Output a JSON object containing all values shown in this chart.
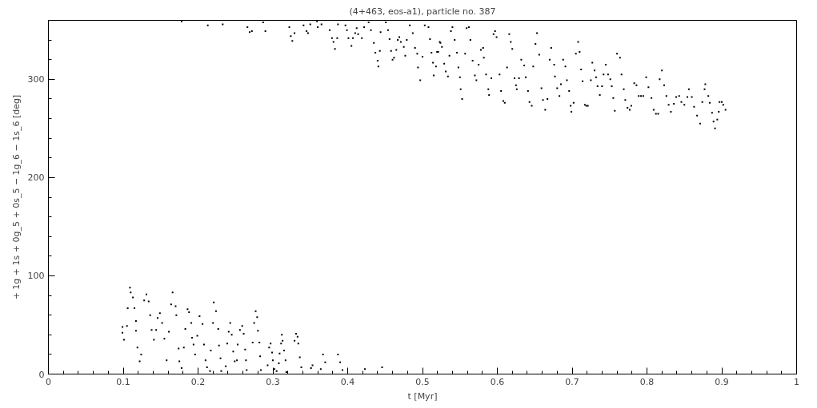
{
  "chart_data": {
    "type": "scatter",
    "title": "(4+463, eos-a1), particle no. 387",
    "xlabel": "t [Myr]",
    "ylabel": "+ 1g + 1s + 0g_5 + 0s_5 − 1g_6 − 1s_6 [deg]",
    "xlim": [
      0,
      1
    ],
    "ylim": [
      0,
      360
    ],
    "xticks": [
      0,
      {
        "value": 0.02,
        "label": null
      },
      {
        "value": 0.04,
        "label": null
      },
      {
        "value": 0.06,
        "label": null
      },
      {
        "value": 0.08,
        "label": null
      },
      0.1,
      {
        "value": 0.12,
        "label": null
      },
      {
        "value": 0.14,
        "label": null
      },
      {
        "value": 0.16,
        "label": null
      },
      {
        "value": 0.18,
        "label": null
      },
      0.2,
      {
        "value": 0.22,
        "label": null
      },
      {
        "value": 0.24,
        "label": null
      },
      {
        "value": 0.26,
        "label": null
      },
      {
        "value": 0.28,
        "label": null
      },
      0.3,
      {
        "value": 0.32,
        "label": null
      },
      {
        "value": 0.34,
        "label": null
      },
      {
        "value": 0.36,
        "label": null
      },
      {
        "value": 0.38,
        "label": null
      },
      0.4,
      {
        "value": 0.42,
        "label": null
      },
      {
        "value": 0.44,
        "label": null
      },
      {
        "value": 0.46,
        "label": null
      },
      {
        "value": 0.48,
        "label": null
      },
      0.5,
      {
        "value": 0.52,
        "label": null
      },
      {
        "value": 0.54,
        "label": null
      },
      {
        "value": 0.56,
        "label": null
      },
      {
        "value": 0.58,
        "label": null
      },
      0.6,
      {
        "value": 0.62,
        "label": null
      },
      {
        "value": 0.64,
        "label": null
      },
      {
        "value": 0.66,
        "label": null
      },
      {
        "value": 0.68,
        "label": null
      },
      0.7,
      {
        "value": 0.72,
        "label": null
      },
      {
        "value": 0.74,
        "label": null
      },
      {
        "value": 0.76,
        "label": null
      },
      {
        "value": 0.78,
        "label": null
      },
      0.8,
      {
        "value": 0.82,
        "label": null
      },
      {
        "value": 0.84,
        "label": null
      },
      {
        "value": 0.86,
        "label": null
      },
      {
        "value": 0.88,
        "label": null
      },
      0.9,
      {
        "value": 0.92,
        "label": null
      },
      {
        "value": 0.94,
        "label": null
      },
      {
        "value": 0.96,
        "label": null
      },
      {
        "value": 0.98,
        "label": null
      },
      1
    ],
    "yticks": [
      0,
      {
        "value": 20,
        "label": null
      },
      {
        "value": 40,
        "label": null
      },
      {
        "value": 60,
        "label": null
      },
      {
        "value": 80,
        "label": null
      },
      100,
      {
        "value": 120,
        "label": null
      },
      {
        "value": 140,
        "label": null
      },
      {
        "value": 160,
        "label": null
      },
      {
        "value": 180,
        "label": null
      },
      200,
      {
        "value": 220,
        "label": null
      },
      {
        "value": 240,
        "label": null
      },
      {
        "value": 260,
        "label": null
      },
      {
        "value": 280,
        "label": null
      },
      300,
      {
        "value": 320,
        "label": null
      },
      {
        "value": 340,
        "label": null
      }
    ],
    "grid": false,
    "marker": "square",
    "series": [
      {
        "color": "#000000",
        "x": [
          0.099,
          0.099,
          0.101,
          0.105,
          0.106,
          0.109,
          0.11,
          0.113,
          0.115,
          0.117,
          0.117,
          0.119,
          0.122,
          0.124,
          0.128,
          0.131,
          0.134,
          0.136,
          0.138,
          0.141,
          0.144,
          0.146,
          0.149,
          0.152,
          0.155,
          0.158,
          0.161,
          0.164,
          0.166,
          0.17,
          0.171,
          0.174,
          0.175,
          0.178,
          0.181,
          0.183,
          0.186,
          0.188,
          0.191,
          0.192,
          0.194,
          0.196,
          0.199,
          0.202,
          0.206,
          0.208,
          0.21,
          0.212,
          0.216,
          0.217,
          0.22,
          0.221,
          0.224,
          0.227,
          0.228,
          0.23,
          0.231,
          0.237,
          0.239,
          0.241,
          0.243,
          0.245,
          0.247,
          0.249,
          0.252,
          0.253,
          0.256,
          0.259,
          0.261,
          0.263,
          0.264,
          0.265,
          0.273,
          0.275,
          0.277,
          0.279,
          0.28,
          0.282,
          0.283,
          0.284,
          0.293,
          0.295,
          0.297,
          0.299,
          0.3,
          0.302,
          0.305,
          0.308,
          0.309,
          0.311,
          0.312,
          0.313,
          0.315,
          0.317,
          0.318,
          0.329,
          0.331,
          0.333,
          0.334,
          0.336,
          0.338,
          0.351,
          0.353,
          0.364,
          0.367,
          0.37,
          0.387,
          0.39,
          0.393,
          0.423,
          0.446,
          0.178,
          0.213,
          0.233,
          0.266,
          0.269,
          0.272,
          0.287,
          0.29,
          0.322,
          0.324,
          0.326,
          0.329,
          0.341,
          0.345,
          0.347,
          0.35,
          0.359,
          0.36,
          0.365,
          0.376,
          0.379,
          0.381,
          0.383,
          0.386,
          0.387,
          0.397,
          0.399,
          0.401,
          0.405,
          0.407,
          0.41,
          0.412,
          0.414,
          0.419,
          0.422,
          0.428,
          0.431,
          0.435,
          0.437,
          0.44,
          0.441,
          0.443,
          0.444,
          0.451,
          0.454,
          0.456,
          0.458,
          0.46,
          0.462,
          0.465,
          0.467,
          0.469,
          0.471,
          0.475,
          0.477,
          0.479,
          0.483,
          0.487,
          0.49,
          0.493,
          0.494,
          0.497,
          0.5,
          0.503,
          0.508,
          0.51,
          0.512,
          0.514,
          0.515,
          0.518,
          0.521,
          0.524,
          0.5195,
          0.523,
          0.526,
          0.529,
          0.531,
          0.534,
          0.536,
          0.538,
          0.54,
          0.543,
          0.546,
          0.548,
          0.55,
          0.551,
          0.553,
          0.557,
          0.559,
          0.562,
          0.564,
          0.567,
          0.57,
          0.572,
          0.575,
          0.578,
          0.581,
          0.582,
          0.585,
          0.588,
          0.589,
          0.592,
          0.595,
          0.597,
          0.599,
          0.603,
          0.605,
          0.608,
          0.61,
          0.613,
          0.616,
          0.618,
          0.62,
          0.623,
          0.625,
          0.626,
          0.629,
          0.632,
          0.636,
          0.638,
          0.641,
          0.643,
          0.646,
          0.648,
          0.651,
          0.653,
          0.656,
          0.659,
          0.661,
          0.664,
          0.667,
          0.67,
          0.672,
          0.676,
          0.677,
          0.68,
          0.683,
          0.685,
          0.688,
          0.691,
          0.693,
          0.696,
          0.698,
          0.699,
          0.702,
          0.705,
          0.708,
          0.71,
          0.712,
          0.714,
          0.717,
          0.719,
          0.721,
          0.725,
          0.727,
          0.73,
          0.732,
          0.734,
          0.737,
          0.74,
          0.742,
          0.745,
          0.748,
          0.751,
          0.753,
          0.755,
          0.757,
          0.76,
          0.764,
          0.766,
          0.769,
          0.771,
          0.774,
          0.777,
          0.779,
          0.783,
          0.786,
          0.789,
          0.792,
          0.795,
          0.799,
          0.802,
          0.806,
          0.809,
          0.812,
          0.815,
          0.817,
          0.82,
          0.823,
          0.826,
          0.829,
          0.832,
          0.836,
          0.839,
          0.843,
          0.846,
          0.85,
          0.854,
          0.856,
          0.86,
          0.863,
          0.867,
          0.871,
          0.874,
          0.877,
          0.878,
          0.882,
          0.884,
          0.887,
          0.889,
          0.891,
          0.894,
          0.896,
          0.897,
          0.9,
          0.902,
          0.905
        ],
        "values": [
          48,
          42,
          35,
          49,
          67,
          88,
          83,
          78,
          67,
          54,
          44,
          27,
          13,
          20,
          75,
          81,
          74,
          60,
          45,
          35,
          45,
          57,
          62,
          52,
          36,
          14,
          43,
          71,
          83,
          69,
          60,
          26,
          13,
          6,
          27,
          46,
          66,
          63,
          52,
          37,
          30,
          20,
          39,
          59,
          51,
          30,
          14,
          7,
          3,
          24,
          52,
          73,
          64,
          46,
          29,
          16,
          3,
          8,
          31,
          43,
          52,
          40,
          23,
          13,
          14,
          30,
          45,
          49,
          41,
          25,
          14,
          4,
          32,
          52,
          64,
          58,
          44,
          32,
          18,
          4,
          9,
          27,
          31,
          22,
          14,
          5,
          3,
          11,
          21,
          31,
          40,
          34,
          24,
          14,
          2,
          34,
          41,
          38,
          31,
          17,
          7,
          6,
          9,
          5,
          20,
          12,
          20,
          12,
          4,
          5,
          7,
          359,
          355,
          356,
          353,
          348,
          349,
          358,
          349,
          353,
          344,
          339,
          347,
          355,
          349,
          347,
          356,
          359,
          353,
          356,
          350,
          342,
          338,
          331,
          342,
          356,
          355,
          350,
          342,
          334,
          342,
          347,
          352,
          346,
          342,
          353,
          358,
          350,
          337,
          327,
          319,
          313,
          329,
          348,
          358,
          350,
          341,
          329,
          320,
          322,
          330,
          340,
          343,
          338,
          333,
          324,
          340,
          355,
          347,
          332,
          326,
          312,
          299,
          323,
          355,
          353,
          341,
          327,
          317,
          304,
          313,
          328,
          337,
          328,
          338,
          333,
          316,
          308,
          303,
          324,
          349,
          353,
          340,
          327,
          312,
          302,
          290,
          280,
          326,
          352,
          353,
          340,
          319,
          304,
          299,
          315,
          330,
          332,
          322,
          305,
          290,
          284,
          301,
          346,
          349,
          343,
          305,
          288,
          278,
          276,
          312,
          346,
          338,
          331,
          301,
          294,
          290,
          301,
          320,
          314,
          302,
          288,
          277,
          273,
          313,
          336,
          347,
          325,
          291,
          279,
          269,
          280,
          320,
          332,
          315,
          303,
          291,
          283,
          295,
          320,
          313,
          299,
          288,
          273,
          267,
          276,
          326,
          338,
          328,
          310,
          298,
          274,
          273,
          273,
          299,
          317,
          309,
          302,
          293,
          284,
          293,
          305,
          315,
          305,
          300,
          293,
          281,
          268,
          326,
          322,
          305,
          290,
          279,
          271,
          269,
          273,
          296,
          294,
          283,
          283,
          283,
          302,
          292,
          281,
          269,
          265,
          265,
          300,
          309,
          294,
          283,
          274,
          267,
          275,
          282,
          283,
          277,
          274,
          282,
          290,
          282,
          272,
          263,
          255,
          277,
          290,
          295,
          283,
          276,
          266,
          257,
          250,
          259,
          267,
          277,
          277,
          274,
          269
        ]
      }
    ]
  }
}
